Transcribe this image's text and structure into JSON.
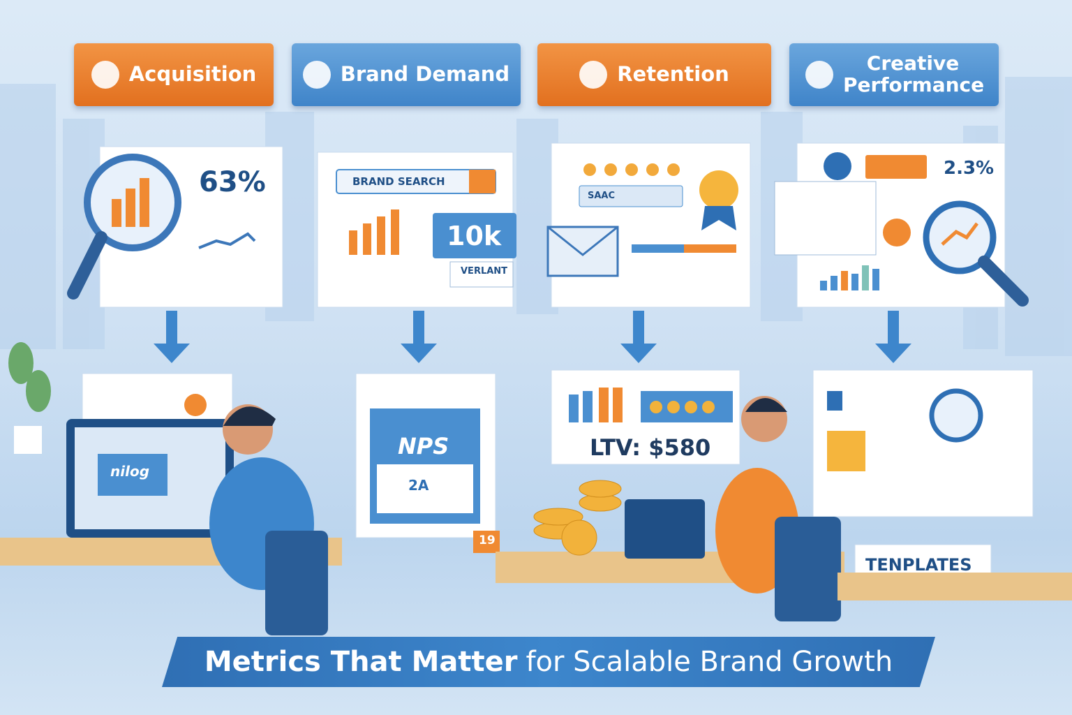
{
  "header_tabs": [
    {
      "label": "Acquisition"
    },
    {
      "label": "Brand Demand"
    },
    {
      "label": "Retention"
    },
    {
      "label": "Creative Performance"
    }
  ],
  "top_cards": [
    {
      "stat": "63%"
    },
    {
      "search": "BRAND SEARCH",
      "stat": "10k",
      "badge": "VERLANT"
    },
    {
      "field": "SAAC"
    },
    {
      "stat": "2.3%"
    }
  ],
  "bottom_cards": [
    {
      "screen": "nilog"
    },
    {
      "title": "NPS",
      "check": "2A",
      "tag": "19"
    },
    {
      "stat": "LTV: $580"
    },
    {
      "box": "TENPLATES"
    }
  ],
  "banner": {
    "bold": "Metrics That Matter",
    "rest": "for Scalable Brand Growth"
  }
}
